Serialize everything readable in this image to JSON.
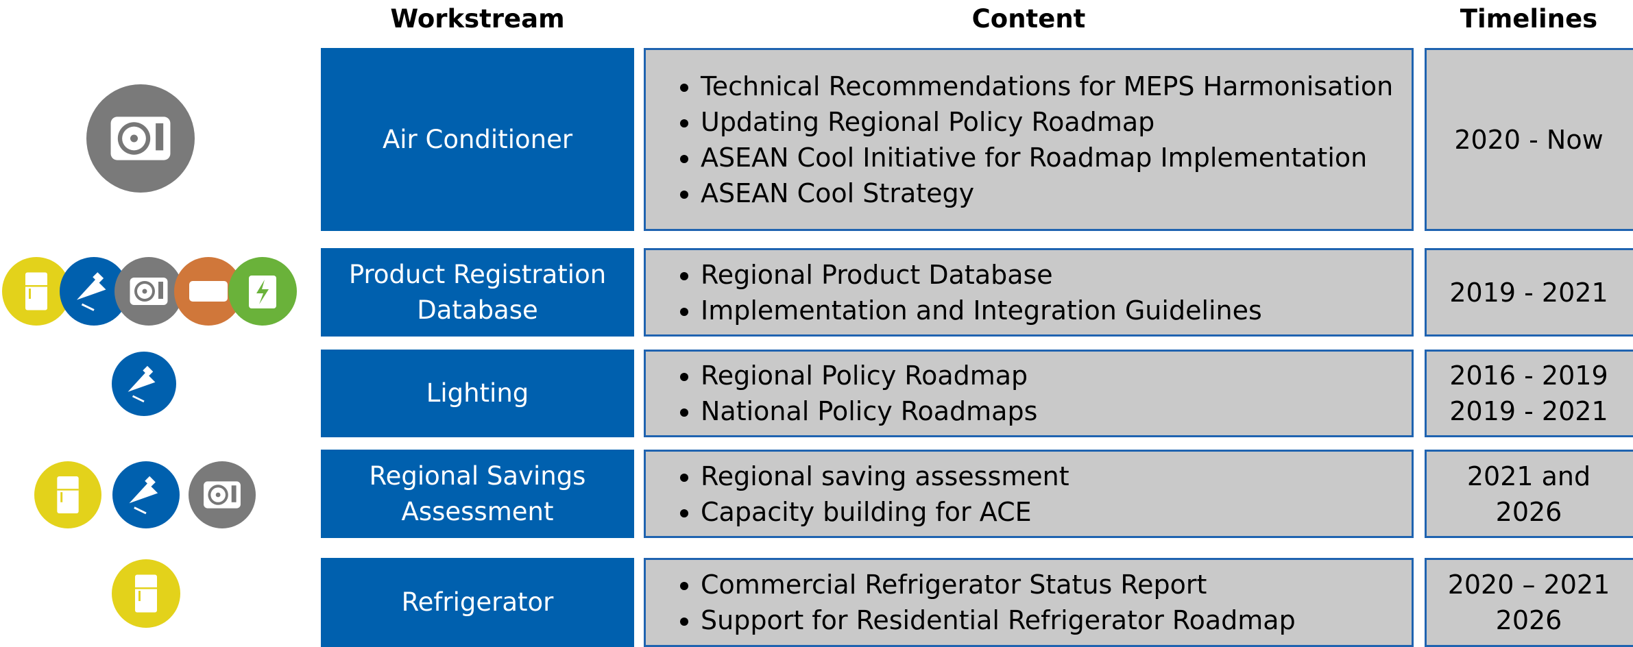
{
  "headers": {
    "workstream": "Workstream",
    "content": "Content",
    "timelines": "Timelines"
  },
  "rows": [
    {
      "workstream": "Air Conditioner",
      "content": [
        "Technical Recommendations for MEPS Harmonisation",
        "Updating Regional Policy Roadmap",
        "ASEAN Cool Initiative for Roadmap Implementation",
        "ASEAN Cool Strategy"
      ],
      "timelines": [
        "2020 - Now"
      ]
    },
    {
      "workstream": "Product Registration Database",
      "content": [
        "Regional Product Database",
        "Implementation and Integration Guidelines"
      ],
      "timelines": [
        "2019 - 2021"
      ]
    },
    {
      "workstream": "Lighting",
      "content": [
        "Regional Policy Roadmap",
        "National Policy Roadmaps"
      ],
      "timelines": [
        "2016 - 2019",
        "2019 - 2021"
      ]
    },
    {
      "workstream": "Regional Savings Assessment",
      "content": [
        "Regional saving assessment",
        "Capacity building for ACE"
      ],
      "timelines": [
        "2021 and",
        "2026"
      ]
    },
    {
      "workstream": "Refrigerator",
      "content": [
        "Commercial Refrigerator Status Report",
        "Support for Residential Refrigerator Roadmap"
      ],
      "timelines": [
        "2020 – 2021",
        "2026"
      ]
    }
  ]
}
